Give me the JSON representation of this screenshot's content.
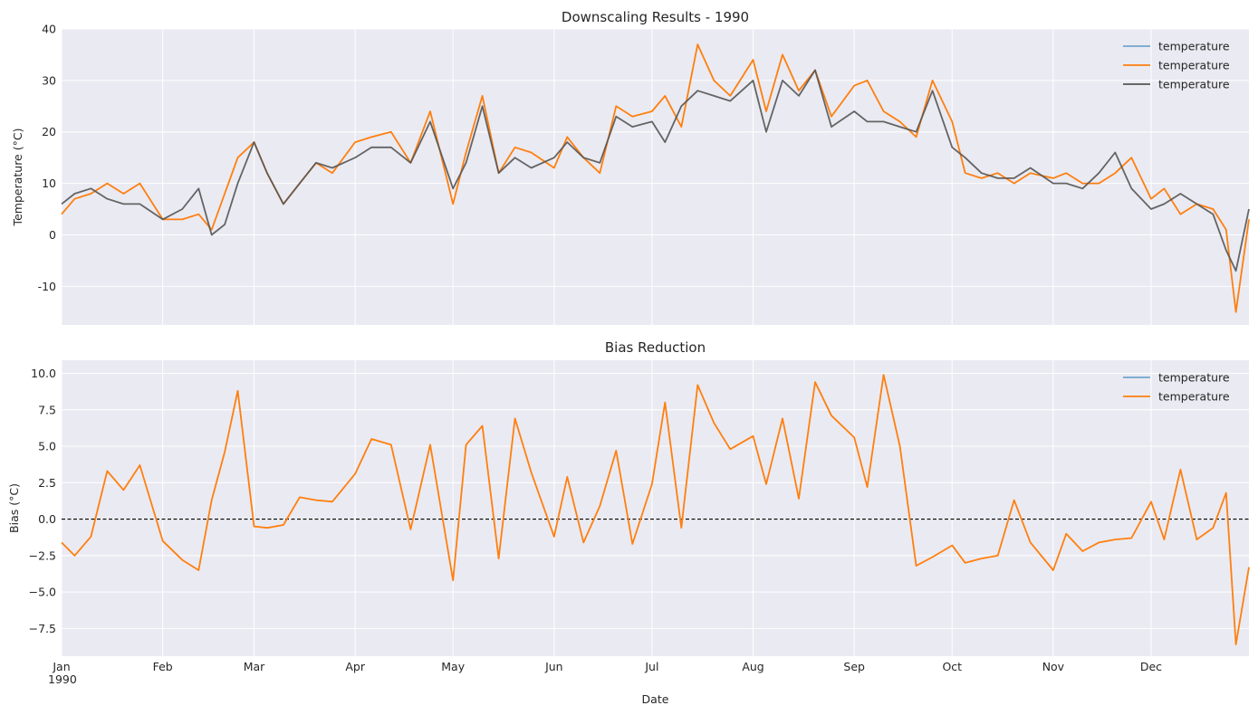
{
  "chart_data": [
    {
      "type": "line",
      "title": "Downscaling Results - 1990",
      "xlabel": "",
      "ylabel": "Temperature (°C)",
      "ylim": [
        -17.5,
        40
      ],
      "yticks": [
        -10,
        0,
        10,
        20,
        30,
        40
      ],
      "xlim": [
        "1990-01-01",
        "1990-12-31"
      ],
      "grid": true,
      "legend": "upper right",
      "legend_entries": [
        "temperature",
        "temperature",
        "temperature"
      ],
      "series": [
        {
          "name": "temperature",
          "color": "#1f77b4",
          "note_hidden": true,
          "x": [
            "1990-01-01",
            "1990-01-05",
            "1990-01-10",
            "1990-01-15",
            "1990-01-20",
            "1990-01-25",
            "1990-02-01",
            "1990-02-07",
            "1990-02-12",
            "1990-02-16",
            "1990-02-20",
            "1990-02-24",
            "1990-03-01",
            "1990-03-05",
            "1990-03-10",
            "1990-03-15",
            "1990-03-20",
            "1990-03-25",
            "1990-04-01",
            "1990-04-06",
            "1990-04-12",
            "1990-04-18",
            "1990-04-24",
            "1990-05-01",
            "1990-05-05",
            "1990-05-10",
            "1990-05-15",
            "1990-05-20",
            "1990-05-25",
            "1990-06-01",
            "1990-06-05",
            "1990-06-10",
            "1990-06-15",
            "1990-06-20",
            "1990-06-25",
            "1990-07-01",
            "1990-07-05",
            "1990-07-10",
            "1990-07-15",
            "1990-07-20",
            "1990-07-25",
            "1990-08-01",
            "1990-08-05",
            "1990-08-10",
            "1990-08-15",
            "1990-08-20",
            "1990-08-25",
            "1990-09-01",
            "1990-09-05",
            "1990-09-10",
            "1990-09-15",
            "1990-09-20",
            "1990-09-25",
            "1990-10-01",
            "1990-10-05",
            "1990-10-10",
            "1990-10-15",
            "1990-10-20",
            "1990-10-25",
            "1990-11-01",
            "1990-11-05",
            "1990-11-10",
            "1990-11-15",
            "1990-11-20",
            "1990-11-25",
            "1990-12-01",
            "1990-12-05",
            "1990-12-10",
            "1990-12-15",
            "1990-12-20",
            "1990-12-24",
            "1990-12-27",
            "1990-12-31"
          ],
          "y": [
            4,
            7,
            8,
            10,
            8,
            10,
            3,
            3,
            4,
            1,
            8,
            15,
            18,
            12,
            6,
            10,
            14,
            12,
            18,
            19,
            20,
            14,
            24,
            6,
            16,
            27,
            12,
            17,
            16,
            13,
            19,
            15,
            12,
            25,
            23,
            24,
            27,
            21,
            37,
            30,
            27,
            34,
            24,
            35,
            28,
            32,
            23,
            29,
            30,
            24,
            22,
            19,
            30,
            22,
            12,
            11,
            12,
            10,
            12,
            11,
            12,
            10,
            10,
            12,
            15,
            7,
            9,
            4,
            6,
            5,
            1,
            -15,
            3
          ]
        },
        {
          "name": "temperature",
          "color": "#ff7f0e",
          "x": [
            "1990-01-01",
            "1990-01-05",
            "1990-01-10",
            "1990-01-15",
            "1990-01-20",
            "1990-01-25",
            "1990-02-01",
            "1990-02-07",
            "1990-02-12",
            "1990-02-16",
            "1990-02-20",
            "1990-02-24",
            "1990-03-01",
            "1990-03-05",
            "1990-03-10",
            "1990-03-15",
            "1990-03-20",
            "1990-03-25",
            "1990-04-01",
            "1990-04-06",
            "1990-04-12",
            "1990-04-18",
            "1990-04-24",
            "1990-05-01",
            "1990-05-05",
            "1990-05-10",
            "1990-05-15",
            "1990-05-20",
            "1990-05-25",
            "1990-06-01",
            "1990-06-05",
            "1990-06-10",
            "1990-06-15",
            "1990-06-20",
            "1990-06-25",
            "1990-07-01",
            "1990-07-05",
            "1990-07-10",
            "1990-07-15",
            "1990-07-20",
            "1990-07-25",
            "1990-08-01",
            "1990-08-05",
            "1990-08-10",
            "1990-08-15",
            "1990-08-20",
            "1990-08-25",
            "1990-09-01",
            "1990-09-05",
            "1990-09-10",
            "1990-09-15",
            "1990-09-20",
            "1990-09-25",
            "1990-10-01",
            "1990-10-05",
            "1990-10-10",
            "1990-10-15",
            "1990-10-20",
            "1990-10-25",
            "1990-11-01",
            "1990-11-05",
            "1990-11-10",
            "1990-11-15",
            "1990-11-20",
            "1990-11-25",
            "1990-12-01",
            "1990-12-05",
            "1990-12-10",
            "1990-12-15",
            "1990-12-20",
            "1990-12-24",
            "1990-12-27",
            "1990-12-31"
          ],
          "y": [
            4,
            7,
            8,
            10,
            8,
            10,
            3,
            3,
            4,
            1,
            8,
            15,
            18,
            12,
            6,
            10,
            14,
            12,
            18,
            19,
            20,
            14,
            24,
            6,
            16,
            27,
            12,
            17,
            16,
            13,
            19,
            15,
            12,
            25,
            23,
            24,
            27,
            21,
            37,
            30,
            27,
            34,
            24,
            35,
            28,
            32,
            23,
            29,
            30,
            24,
            22,
            19,
            30,
            22,
            12,
            11,
            12,
            10,
            12,
            11,
            12,
            10,
            10,
            12,
            15,
            7,
            9,
            4,
            6,
            5,
            1,
            -15,
            3
          ]
        },
        {
          "name": "temperature",
          "color": "#555555",
          "x": [
            "1990-01-01",
            "1990-01-05",
            "1990-01-10",
            "1990-01-15",
            "1990-01-20",
            "1990-01-25",
            "1990-02-01",
            "1990-02-07",
            "1990-02-12",
            "1990-02-16",
            "1990-02-20",
            "1990-02-24",
            "1990-03-01",
            "1990-03-05",
            "1990-03-10",
            "1990-03-15",
            "1990-03-20",
            "1990-03-25",
            "1990-04-01",
            "1990-04-06",
            "1990-04-12",
            "1990-04-18",
            "1990-04-24",
            "1990-05-01",
            "1990-05-05",
            "1990-05-10",
            "1990-05-15",
            "1990-05-20",
            "1990-05-25",
            "1990-06-01",
            "1990-06-05",
            "1990-06-10",
            "1990-06-15",
            "1990-06-20",
            "1990-06-25",
            "1990-07-01",
            "1990-07-05",
            "1990-07-10",
            "1990-07-15",
            "1990-07-20",
            "1990-07-25",
            "1990-08-01",
            "1990-08-05",
            "1990-08-10",
            "1990-08-15",
            "1990-08-20",
            "1990-08-25",
            "1990-09-01",
            "1990-09-05",
            "1990-09-10",
            "1990-09-15",
            "1990-09-20",
            "1990-09-25",
            "1990-10-01",
            "1990-10-05",
            "1990-10-10",
            "1990-10-15",
            "1990-10-20",
            "1990-10-25",
            "1990-11-01",
            "1990-11-05",
            "1990-11-10",
            "1990-11-15",
            "1990-11-20",
            "1990-11-25",
            "1990-12-01",
            "1990-12-05",
            "1990-12-10",
            "1990-12-15",
            "1990-12-20",
            "1990-12-24",
            "1990-12-27",
            "1990-12-31"
          ],
          "y": [
            6,
            8,
            9,
            7,
            6,
            6,
            3,
            5,
            9,
            0,
            2,
            10,
            18,
            12,
            6,
            10,
            14,
            13,
            15,
            17,
            17,
            14,
            22,
            9,
            14,
            25,
            12,
            15,
            13,
            15,
            18,
            15,
            14,
            23,
            21,
            22,
            18,
            25,
            28,
            27,
            26,
            30,
            20,
            30,
            27,
            32,
            21,
            24,
            22,
            22,
            21,
            20,
            28,
            17,
            15,
            12,
            11,
            11,
            13,
            10,
            10,
            9,
            12,
            16,
            9,
            5,
            6,
            8,
            6,
            4,
            -3,
            -7,
            5
          ]
        }
      ]
    },
    {
      "type": "line",
      "title": "Bias Reduction",
      "xlabel": "Date",
      "ylabel": "Bias (°C)",
      "ylim": [
        -9.4,
        10.9
      ],
      "yticks": [
        -7.5,
        -5.0,
        -2.5,
        0.0,
        2.5,
        5.0,
        7.5,
        10.0
      ],
      "ytick_labels": [
        "−7.5",
        "−5.0",
        "−2.5",
        "0.0",
        "2.5",
        "5.0",
        "7.5",
        "10.0"
      ],
      "xlim": [
        "1990-01-01",
        "1990-12-31"
      ],
      "xtick_labels": [
        "Jan",
        "Feb",
        "Mar",
        "Apr",
        "May",
        "Jun",
        "Jul",
        "Aug",
        "Sep",
        "Oct",
        "Nov",
        "Dec"
      ],
      "xtick_year": "1990",
      "reference_line": 0,
      "grid": true,
      "legend": "upper right",
      "legend_entries": [
        "temperature",
        "temperature"
      ],
      "series": [
        {
          "name": "temperature",
          "color": "#1f77b4",
          "note_hidden": true,
          "x": [
            "1990-01-01",
            "1990-01-05",
            "1990-01-10",
            "1990-01-15",
            "1990-01-20",
            "1990-01-25",
            "1990-02-01",
            "1990-02-07",
            "1990-02-12",
            "1990-02-16",
            "1990-02-20",
            "1990-02-24",
            "1990-03-01",
            "1990-03-05",
            "1990-03-10",
            "1990-03-15",
            "1990-03-20",
            "1990-03-25",
            "1990-04-01",
            "1990-04-06",
            "1990-04-12",
            "1990-04-18",
            "1990-04-24",
            "1990-05-01",
            "1990-05-05",
            "1990-05-10",
            "1990-05-15",
            "1990-05-20",
            "1990-05-25",
            "1990-06-01",
            "1990-06-05",
            "1990-06-10",
            "1990-06-15",
            "1990-06-20",
            "1990-06-25",
            "1990-07-01",
            "1990-07-05",
            "1990-07-10",
            "1990-07-15",
            "1990-07-20",
            "1990-07-25",
            "1990-08-01",
            "1990-08-05",
            "1990-08-10",
            "1990-08-15",
            "1990-08-20",
            "1990-08-25",
            "1990-09-01",
            "1990-09-05",
            "1990-09-10",
            "1990-09-15",
            "1990-09-20",
            "1990-09-25",
            "1990-10-01",
            "1990-10-05",
            "1990-10-10",
            "1990-10-15",
            "1990-10-20",
            "1990-10-25",
            "1990-11-01",
            "1990-11-05",
            "1990-11-10",
            "1990-11-15",
            "1990-11-20",
            "1990-11-25",
            "1990-12-01",
            "1990-12-05",
            "1990-12-10",
            "1990-12-15",
            "1990-12-20",
            "1990-12-24",
            "1990-12-27",
            "1990-12-31"
          ],
          "y": [
            -1.6,
            -2.5,
            -1.2,
            3.3,
            2,
            3.7,
            -1.5,
            -2.8,
            -3.5,
            1.3,
            4.6,
            8.8,
            -0.5,
            -0.6,
            -0.4,
            1.5,
            1.3,
            1.2,
            3.1,
            5.5,
            5.1,
            -0.7,
            5.1,
            -4.2,
            5.1,
            6.4,
            -2.7,
            6.9,
            3.2,
            -1.2,
            2.9,
            -1.6,
            0.9,
            4.7,
            -1.7,
            2.4,
            8,
            -0.6,
            9.2,
            6.6,
            4.8,
            5.7,
            2.4,
            6.9,
            1.4,
            9.4,
            7.1,
            5.6,
            2.2,
            9.9,
            5,
            -3.2,
            -2.6,
            -1.8,
            -3,
            -2.7,
            -2.5,
            1.3,
            -1.6,
            -3.5,
            -1,
            -2.2,
            -1.6,
            -1.4,
            -1.3,
            1.2,
            -1.4,
            3.4,
            -1.4,
            -0.6,
            1.8,
            -8.6,
            -3.3
          ]
        },
        {
          "name": "temperature",
          "color": "#ff7f0e",
          "x": [
            "1990-01-01",
            "1990-01-05",
            "1990-01-10",
            "1990-01-15",
            "1990-01-20",
            "1990-01-25",
            "1990-02-01",
            "1990-02-07",
            "1990-02-12",
            "1990-02-16",
            "1990-02-20",
            "1990-02-24",
            "1990-03-01",
            "1990-03-05",
            "1990-03-10",
            "1990-03-15",
            "1990-03-20",
            "1990-03-25",
            "1990-04-01",
            "1990-04-06",
            "1990-04-12",
            "1990-04-18",
            "1990-04-24",
            "1990-05-01",
            "1990-05-05",
            "1990-05-10",
            "1990-05-15",
            "1990-05-20",
            "1990-05-25",
            "1990-06-01",
            "1990-06-05",
            "1990-06-10",
            "1990-06-15",
            "1990-06-20",
            "1990-06-25",
            "1990-07-01",
            "1990-07-05",
            "1990-07-10",
            "1990-07-15",
            "1990-07-20",
            "1990-07-25",
            "1990-08-01",
            "1990-08-05",
            "1990-08-10",
            "1990-08-15",
            "1990-08-20",
            "1990-08-25",
            "1990-09-01",
            "1990-09-05",
            "1990-09-10",
            "1990-09-15",
            "1990-09-20",
            "1990-09-25",
            "1990-10-01",
            "1990-10-05",
            "1990-10-10",
            "1990-10-15",
            "1990-10-20",
            "1990-10-25",
            "1990-11-01",
            "1990-11-05",
            "1990-11-10",
            "1990-11-15",
            "1990-11-20",
            "1990-11-25",
            "1990-12-01",
            "1990-12-05",
            "1990-12-10",
            "1990-12-15",
            "1990-12-20",
            "1990-12-24",
            "1990-12-27",
            "1990-12-31"
          ],
          "y": [
            -1.6,
            -2.5,
            -1.2,
            3.3,
            2,
            3.7,
            -1.5,
            -2.8,
            -3.5,
            1.3,
            4.6,
            8.8,
            -0.5,
            -0.6,
            -0.4,
            1.5,
            1.3,
            1.2,
            3.1,
            5.5,
            5.1,
            -0.7,
            5.1,
            -4.2,
            5.1,
            6.4,
            -2.7,
            6.9,
            3.2,
            -1.2,
            2.9,
            -1.6,
            0.9,
            4.7,
            -1.7,
            2.4,
            8,
            -0.6,
            9.2,
            6.6,
            4.8,
            5.7,
            2.4,
            6.9,
            1.4,
            9.4,
            7.1,
            5.6,
            2.2,
            9.9,
            5,
            -3.2,
            -2.6,
            -1.8,
            -3,
            -2.7,
            -2.5,
            1.3,
            -1.6,
            -3.5,
            -1,
            -2.2,
            -1.6,
            -1.4,
            -1.3,
            1.2,
            -1.4,
            3.4,
            -1.4,
            -0.6,
            1.8,
            -8.6,
            -3.3
          ]
        }
      ]
    }
  ]
}
